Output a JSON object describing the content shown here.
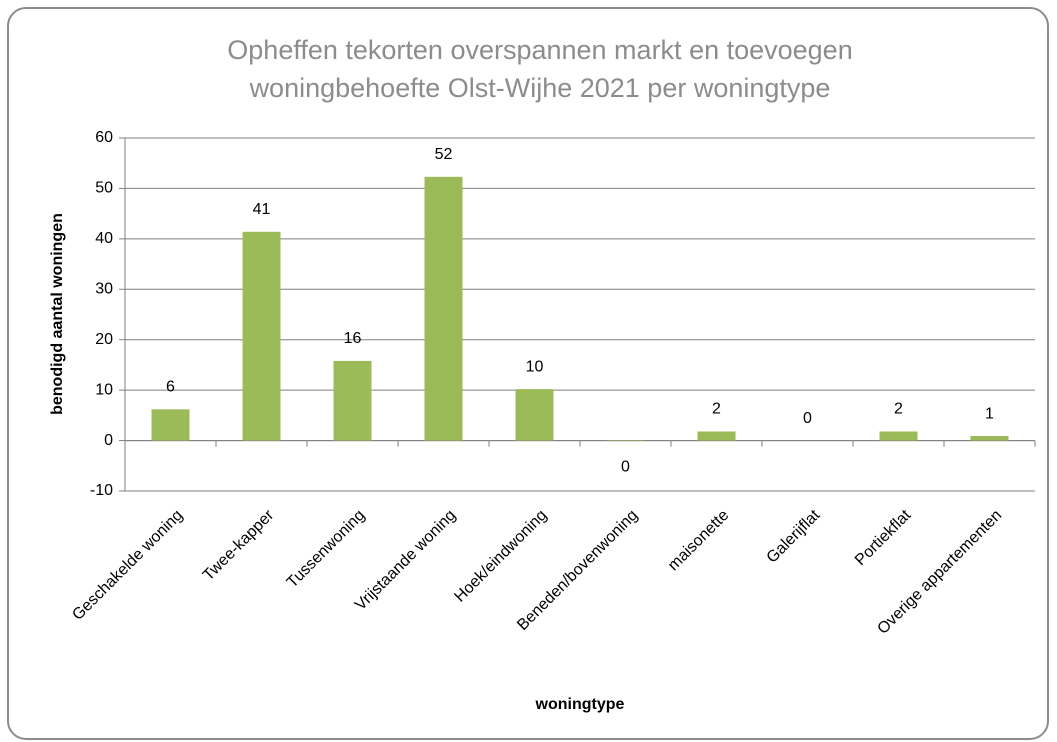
{
  "chart_data": {
    "type": "bar",
    "title": [
      "Opheffen tekorten overspannen markt en toevoegen",
      "woningbehoefte Olst-Wijhe 2021 per woningtype"
    ],
    "x_label": "woningtype",
    "y_label": "benodigd aantal woningen",
    "categories": [
      "Geschakelde woning",
      "Twee-kapper",
      "Tussenwoning",
      "Vrijstaande woning",
      "Hoek/eindwoning",
      "Beneden/bovenwoning",
      "maisonette",
      "Galerijflat",
      "Portiekflat",
      "Overige appartementen"
    ],
    "values": [
      6.2,
      41.4,
      15.8,
      52.3,
      10.2,
      -0.1,
      1.8,
      0,
      1.8,
      0.9
    ],
    "value_labels": [
      "6",
      "41",
      "16",
      "52",
      "10",
      "0",
      "2",
      "0",
      "2",
      "1"
    ],
    "color": "#9bbb59",
    "ylim": [
      -10,
      60
    ],
    "yticks": [
      -10,
      0,
      10,
      20,
      30,
      40,
      50,
      60
    ],
    "grid": true
  }
}
